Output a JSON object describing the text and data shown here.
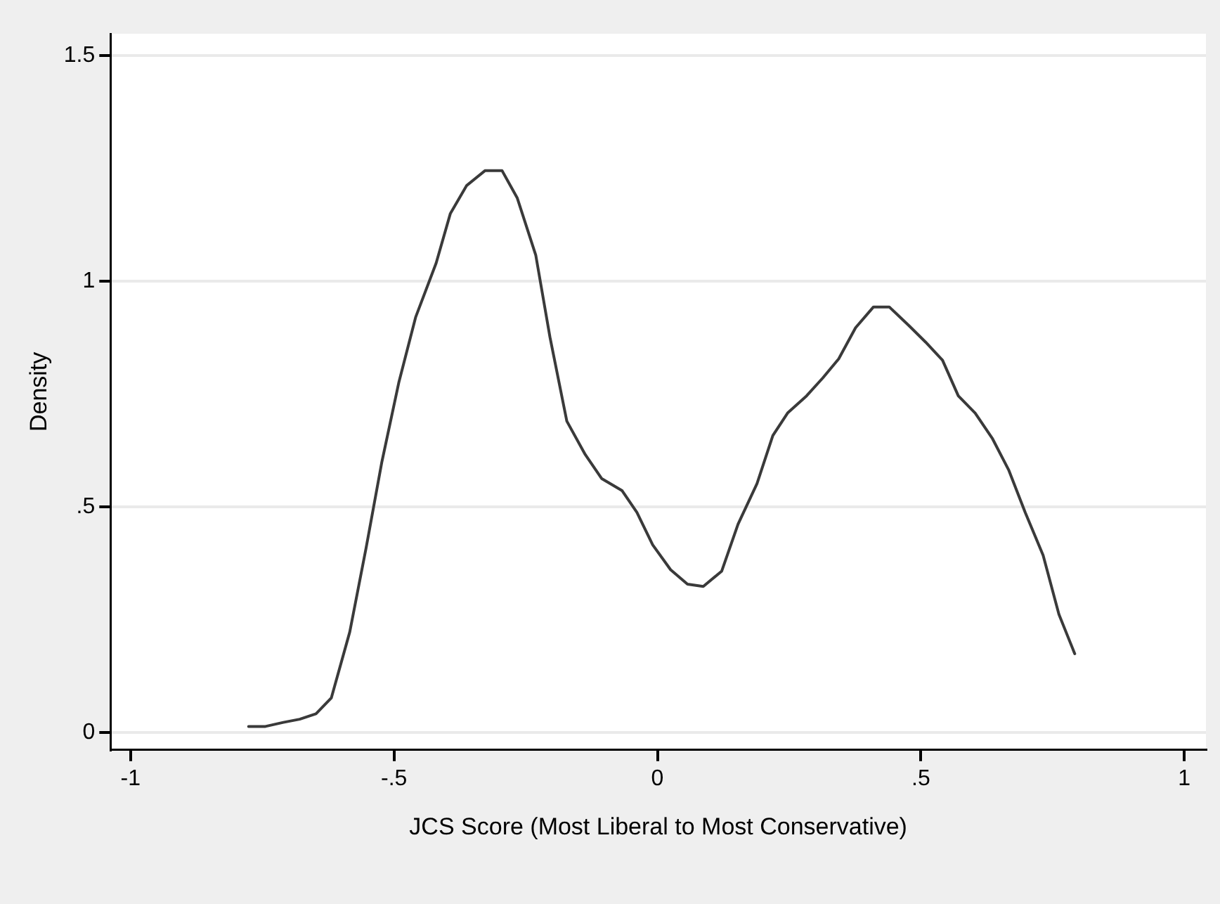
{
  "chart_data": {
    "type": "line",
    "xlabel": "JCS Score (Most Liberal to Most Conservative)",
    "ylabel": "Density",
    "x": [
      -0.776,
      -0.744,
      -0.71,
      -0.679,
      -0.648,
      -0.619,
      -0.584,
      -0.553,
      -0.523,
      -0.491,
      -0.459,
      -0.42,
      -0.393,
      -0.362,
      -0.327,
      -0.295,
      -0.266,
      -0.231,
      -0.204,
      -0.172,
      -0.137,
      -0.106,
      -0.067,
      -0.039,
      -0.009,
      0.025,
      0.057,
      0.087,
      0.122,
      0.153,
      0.189,
      0.219,
      0.247,
      0.283,
      0.314,
      0.344,
      0.376,
      0.41,
      0.44,
      0.477,
      0.509,
      0.541,
      0.571,
      0.603,
      0.636,
      0.667,
      0.698,
      0.732,
      0.762,
      0.792
    ],
    "series": [
      {
        "color": "#3a3a3a",
        "values": [
          0.014,
          0.014,
          0.023,
          0.03,
          0.042,
          0.077,
          0.223,
          0.409,
          0.6,
          0.775,
          0.92,
          1.04,
          1.15,
          1.212,
          1.245,
          1.245,
          1.184,
          1.058,
          0.876,
          0.69,
          0.616,
          0.563,
          0.536,
          0.488,
          0.416,
          0.361,
          0.329,
          0.324,
          0.358,
          0.462,
          0.552,
          0.658,
          0.708,
          0.746,
          0.786,
          0.828,
          0.897,
          0.943,
          0.943,
          0.902,
          0.865,
          0.825,
          0.746,
          0.708,
          0.651,
          0.581,
          0.488,
          0.393,
          0.262,
          0.175
        ]
      }
    ],
    "xlim": [
      -1.038,
      1.041
    ],
    "xticks": [
      {
        "value": -1,
        "label": "-1"
      },
      {
        "value": -0.5,
        "label": "-.5"
      },
      0,
      {
        "value": 0.5,
        "label": ".5"
      },
      1
    ],
    "ylim": [
      -0.038,
      1.548
    ],
    "yticks": [
      0,
      {
        "value": 0.5,
        "label": ".5"
      },
      1,
      1.5
    ],
    "grid": "y",
    "legend": false,
    "marker": "none",
    "line_style": "solid"
  }
}
